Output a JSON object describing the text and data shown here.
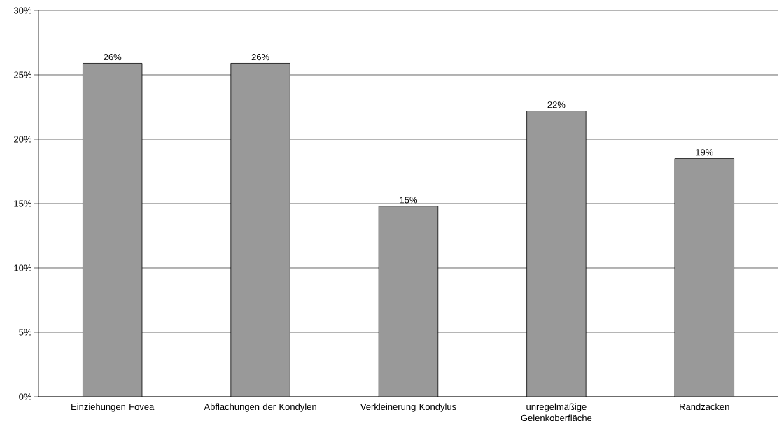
{
  "chart_data": {
    "type": "bar",
    "categories": [
      "Einziehungen Fovea",
      "Abflachungen der Kondylen",
      "Verkleinerung Kondylus",
      "unregelmäßige Gelenkoberfläche",
      "Randzacken"
    ],
    "values": [
      25.9,
      25.9,
      14.8,
      22.2,
      18.5
    ],
    "value_labels": [
      "26%",
      "26%",
      "15%",
      "22%",
      "19%"
    ],
    "color": "#999999",
    "ylim": [
      0,
      30
    ],
    "yticks": [
      {
        "value": 0,
        "label": "0%"
      },
      {
        "value": 5,
        "label": "5%"
      },
      {
        "value": 10,
        "label": "10%"
      },
      {
        "value": 15,
        "label": "15%"
      },
      {
        "value": 20,
        "label": "20%"
      },
      {
        "value": 25,
        "label": "25%"
      },
      {
        "value": 30,
        "label": "30%"
      }
    ],
    "grid": "y"
  }
}
